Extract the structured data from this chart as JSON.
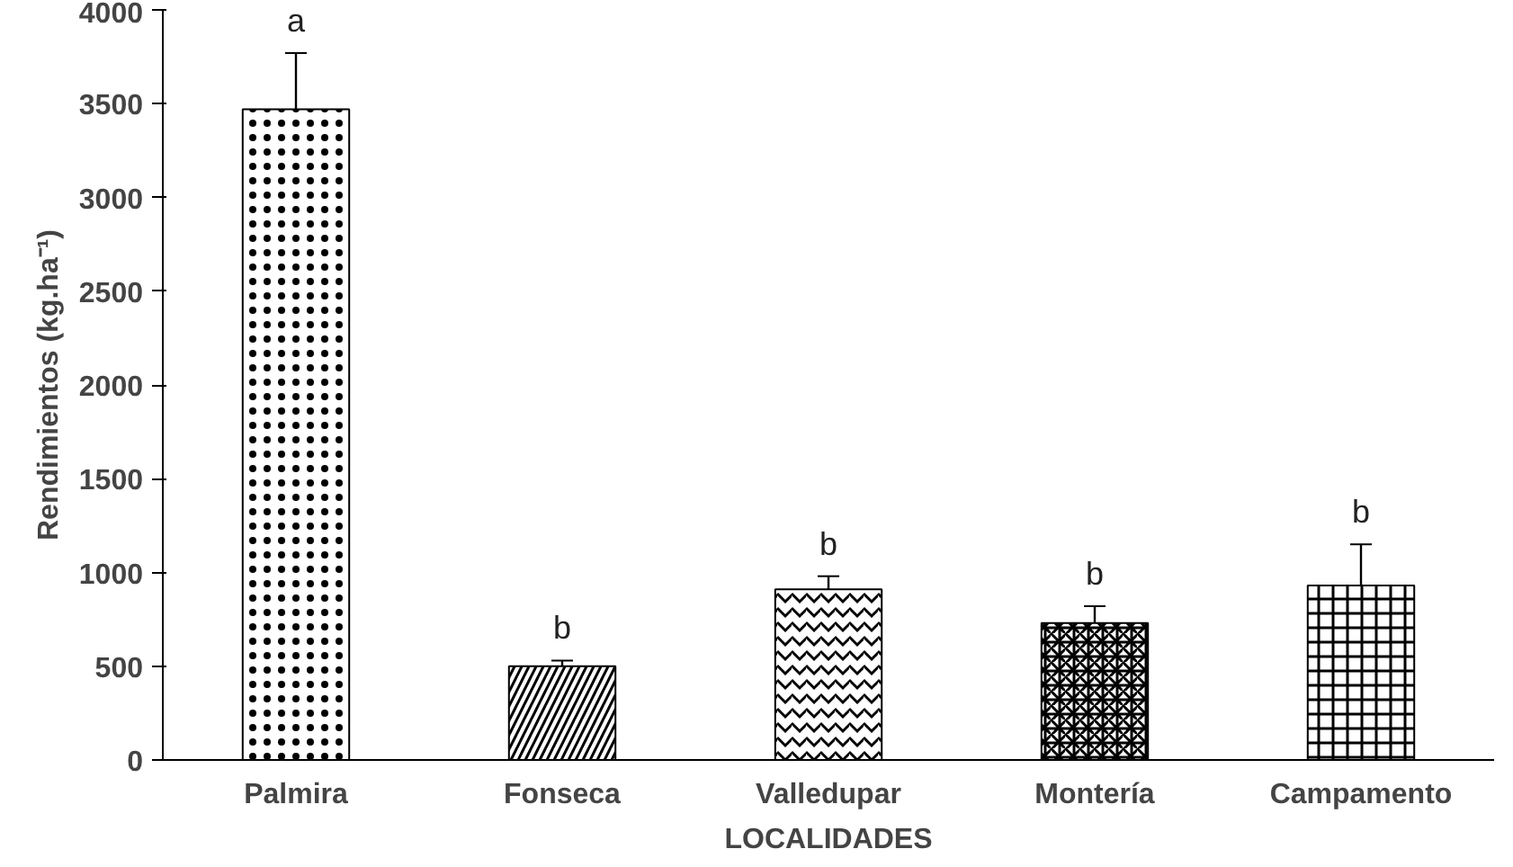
{
  "chart_data": {
    "type": "bar",
    "xlabel": "LOCALIDADES",
    "ylabel": "Rendimientos (kg.ha⁻¹)",
    "categories": [
      "Palmira",
      "Fonseca",
      "Valledupar",
      "Montería",
      "Campamento"
    ],
    "values": [
      3470,
      500,
      910,
      730,
      930
    ],
    "errors": [
      300,
      30,
      70,
      90,
      220
    ],
    "color": "#000000",
    "ylim": [
      0,
      4000
    ],
    "yticks": [
      0,
      500,
      1000,
      1500,
      2000,
      2500,
      3000,
      3500,
      4000
    ],
    "grid": false,
    "annotations": [
      "a",
      "b",
      "b",
      "b",
      "b"
    ]
  }
}
